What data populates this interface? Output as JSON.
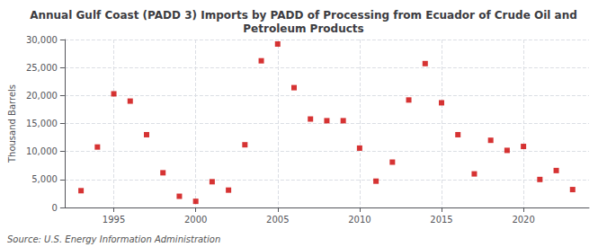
{
  "chart_data": {
    "type": "scatter",
    "title": "Annual Gulf Coast (PADD 3) Imports by PADD of Processing from Ecuador of Crude Oil and\nPetroleum Products",
    "ylabel": "Thousand Barrels",
    "annotations": [
      "Source: U.S. Energy Information Administration"
    ],
    "x": [
      1993,
      1994,
      1995,
      1996,
      1997,
      1998,
      1999,
      2000,
      2001,
      2002,
      2003,
      2004,
      2005,
      2006,
      2007,
      2008,
      2009,
      2010,
      2011,
      2012,
      2013,
      2014,
      2015,
      2016,
      2017,
      2018,
      2019,
      2020,
      2021,
      2022,
      2023
    ],
    "values": [
      3000,
      10800,
      20300,
      19000,
      13000,
      6200,
      2000,
      1100,
      4600,
      3100,
      11200,
      26200,
      29200,
      21400,
      15800,
      15500,
      15500,
      10600,
      4700,
      8100,
      19200,
      25700,
      18700,
      13000,
      6000,
      12000,
      10200,
      10900,
      5000,
      6600,
      3200
    ],
    "color": "#cc0000",
    "marker": "square",
    "xlim": [
      1992,
      2024
    ],
    "xticks": [
      1995,
      2000,
      2005,
      2010,
      2015,
      2020
    ],
    "ylim": [
      0,
      30000
    ],
    "yticks": [
      0,
      {
        "value": 5000,
        "label": "5,000"
      },
      {
        "value": 10000,
        "label": "10,000"
      },
      {
        "value": 15000,
        "label": "15,000"
      },
      {
        "value": 20000,
        "label": "20,000"
      },
      {
        "value": 25000,
        "label": "25,000"
      },
      {
        "value": 30000,
        "label": "30,000"
      }
    ],
    "grid": true
  }
}
